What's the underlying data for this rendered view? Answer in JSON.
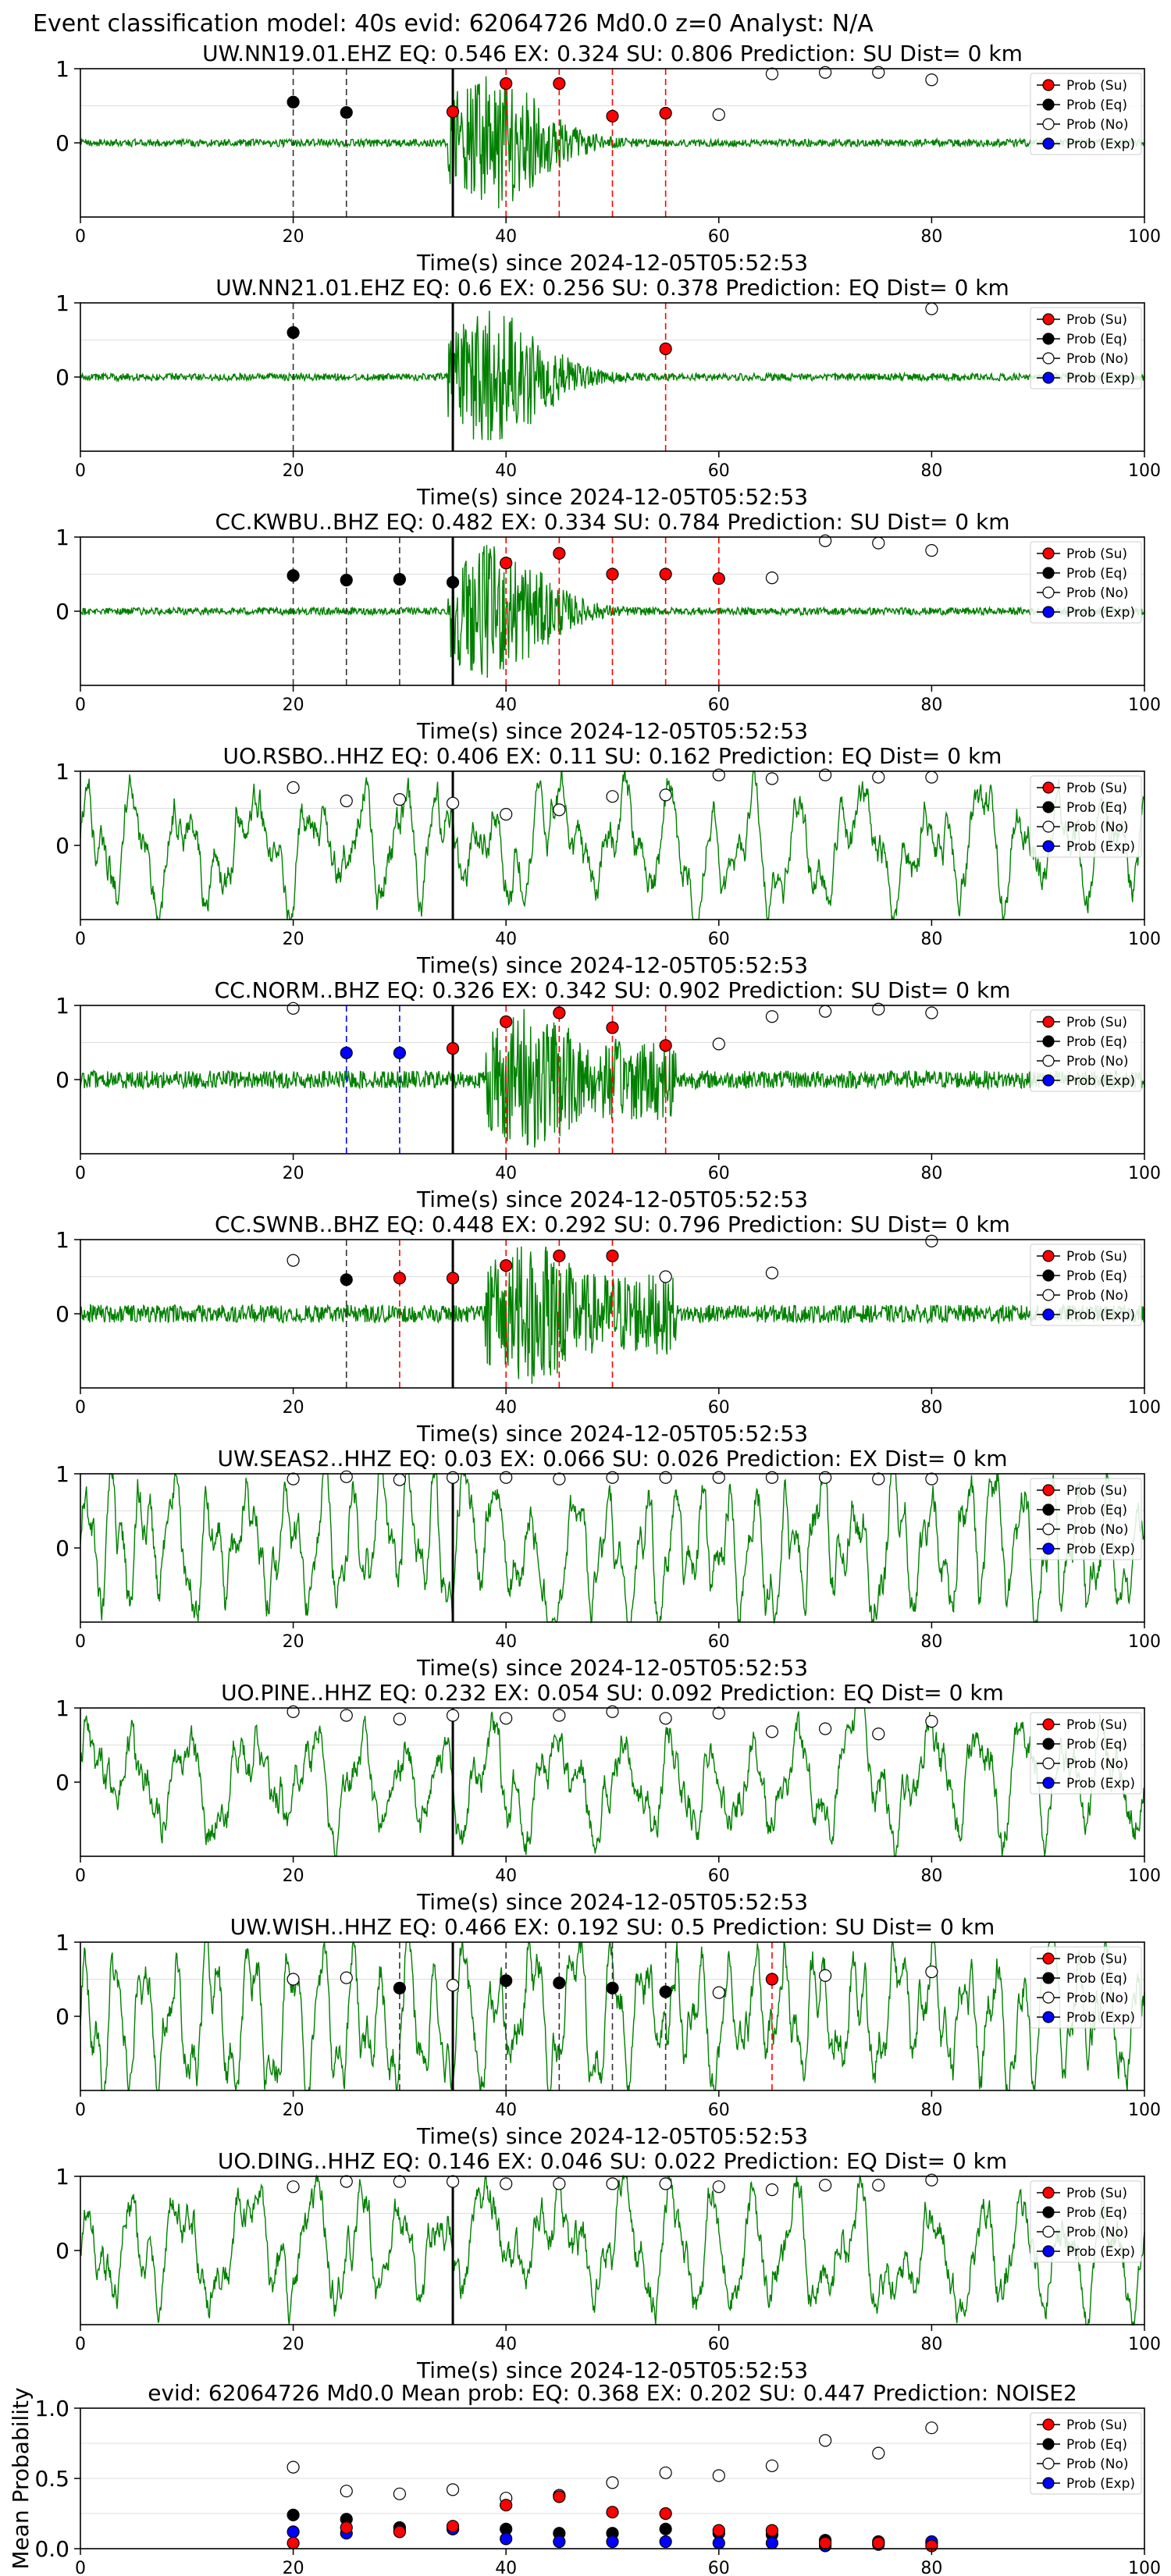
{
  "figure_title": "Event classification model: 40s evid: 62064726 Md0.0 z=0 Analyst: N/A",
  "colors": {
    "waveform": "#008000",
    "su": "#ff0000",
    "eq": "#000000",
    "no": "#ffffff",
    "exp": "#0000ff"
  },
  "legend_labels": [
    "Prob (Su)",
    "Prob (Eq)",
    "Prob (No)",
    "Prob (Exp)"
  ],
  "chart_data": [
    {
      "type": "line",
      "title": "UW.NN19.01.EHZ   EQ: 0.546  EX: 0.324  SU: 0.806   Prediction: SU    Dist= 0 km",
      "xlabel": "Time(s) since 2024-12-05T05:52:53",
      "ylabel": "",
      "xlim": [
        0,
        100
      ],
      "ylim": [
        -1,
        1
      ],
      "xticks": [
        0,
        20,
        40,
        60,
        80,
        100
      ],
      "yticks": [
        0,
        1
      ],
      "event_line_x": 35,
      "wave_style": "event",
      "lines": [
        {
          "x": 20,
          "c": "eq"
        },
        {
          "x": 25,
          "c": "eq"
        },
        {
          "x": 35,
          "c": "su"
        },
        {
          "x": 40,
          "c": "su"
        },
        {
          "x": 45,
          "c": "su"
        },
        {
          "x": 50,
          "c": "su"
        },
        {
          "x": 55,
          "c": "su"
        }
      ],
      "su": [
        [
          35,
          0.42
        ],
        [
          40,
          0.8
        ],
        [
          45,
          0.8
        ],
        [
          50,
          0.36
        ],
        [
          55,
          0.4
        ]
      ],
      "eq": [
        [
          20,
          0.55
        ],
        [
          25,
          0.41
        ]
      ],
      "no": [
        [
          60,
          0.38
        ],
        [
          65,
          0.93
        ],
        [
          70,
          0.95
        ],
        [
          75,
          0.95
        ],
        [
          80,
          0.85
        ]
      ],
      "exp": []
    },
    {
      "type": "line",
      "title": "UW.NN21.01.EHZ   EQ: 0.6  EX: 0.256  SU: 0.378   Prediction: EQ    Dist= 0 km",
      "xlabel": "Time(s) since 2024-12-05T05:52:53",
      "ylabel": "",
      "xlim": [
        0,
        100
      ],
      "ylim": [
        -1,
        1
      ],
      "xticks": [
        0,
        20,
        40,
        60,
        80,
        100
      ],
      "yticks": [
        0,
        1
      ],
      "event_line_x": 35,
      "wave_style": "event2",
      "lines": [
        {
          "x": 20,
          "c": "eq"
        },
        {
          "x": 55,
          "c": "su"
        }
      ],
      "su": [
        [
          55,
          0.38
        ]
      ],
      "eq": [
        [
          20,
          0.6
        ]
      ],
      "no": [
        [
          80,
          0.92
        ]
      ],
      "exp": []
    },
    {
      "type": "line",
      "title": "CC.KWBU..BHZ   EQ: 0.482  EX: 0.334  SU: 0.784   Prediction: SU    Dist= 0 km",
      "xlabel": "Time(s) since 2024-12-05T05:52:53",
      "ylabel": "",
      "xlim": [
        0,
        100
      ],
      "ylim": [
        -1,
        1
      ],
      "xticks": [
        0,
        20,
        40,
        60,
        80,
        100
      ],
      "yticks": [
        0,
        1
      ],
      "event_line_x": 35,
      "wave_style": "event",
      "lines": [
        {
          "x": 20,
          "c": "eq"
        },
        {
          "x": 25,
          "c": "eq"
        },
        {
          "x": 30,
          "c": "eq"
        },
        {
          "x": 40,
          "c": "su"
        },
        {
          "x": 45,
          "c": "su"
        },
        {
          "x": 50,
          "c": "su"
        },
        {
          "x": 55,
          "c": "su"
        },
        {
          "x": 60,
          "c": "su"
        }
      ],
      "su": [
        [
          40,
          0.65
        ],
        [
          45,
          0.78
        ],
        [
          50,
          0.5
        ],
        [
          55,
          0.5
        ],
        [
          60,
          0.44
        ]
      ],
      "eq": [
        [
          20,
          0.48
        ],
        [
          25,
          0.42
        ],
        [
          30,
          0.43
        ],
        [
          35,
          0.39
        ]
      ],
      "no": [
        [
          65,
          0.45
        ],
        [
          70,
          0.95
        ],
        [
          75,
          0.92
        ],
        [
          80,
          0.82
        ]
      ],
      "exp": []
    },
    {
      "type": "line",
      "title": "UO.RSBO..HHZ   EQ: 0.406  EX: 0.11  SU: 0.162   Prediction: EQ    Dist= 0 km",
      "xlabel": "Time(s) since 2024-12-05T05:52:53",
      "ylabel": "",
      "xlim": [
        0,
        100
      ],
      "ylim": [
        -1,
        1
      ],
      "xticks": [
        0,
        20,
        40,
        60,
        80,
        100
      ],
      "yticks": [
        0,
        1
      ],
      "event_line_x": 35,
      "wave_style": "noise",
      "lines": [],
      "su": [],
      "eq": [],
      "no": [
        [
          20,
          0.78
        ],
        [
          25,
          0.6
        ],
        [
          30,
          0.62
        ],
        [
          35,
          0.57
        ],
        [
          40,
          0.42
        ],
        [
          45,
          0.48
        ],
        [
          50,
          0.66
        ],
        [
          55,
          0.68
        ],
        [
          60,
          0.95
        ],
        [
          65,
          0.9
        ],
        [
          70,
          0.95
        ],
        [
          75,
          0.92
        ],
        [
          80,
          0.92
        ]
      ],
      "exp": []
    },
    {
      "type": "line",
      "title": "CC.NORM..BHZ   EQ: 0.326  EX: 0.342  SU: 0.902   Prediction: SU    Dist= 0 km",
      "xlabel": "Time(s) since 2024-12-05T05:52:53",
      "ylabel": "",
      "xlim": [
        0,
        100
      ],
      "ylim": [
        -1,
        1
      ],
      "xticks": [
        0,
        20,
        40,
        60,
        80,
        100
      ],
      "yticks": [
        0,
        1
      ],
      "event_line_x": 35,
      "wave_style": "event3",
      "lines": [
        {
          "x": 25,
          "c": "exp"
        },
        {
          "x": 30,
          "c": "exp"
        },
        {
          "x": 40,
          "c": "su"
        },
        {
          "x": 45,
          "c": "su"
        },
        {
          "x": 50,
          "c": "su"
        },
        {
          "x": 55,
          "c": "su"
        }
      ],
      "su": [
        [
          35,
          0.42
        ],
        [
          40,
          0.78
        ],
        [
          45,
          0.9
        ],
        [
          50,
          0.7
        ],
        [
          55,
          0.46
        ]
      ],
      "eq": [],
      "no": [
        [
          20,
          0.96
        ],
        [
          60,
          0.48
        ],
        [
          65,
          0.85
        ],
        [
          70,
          0.92
        ],
        [
          75,
          0.95
        ],
        [
          80,
          0.9
        ]
      ],
      "exp": [
        [
          25,
          0.36
        ],
        [
          30,
          0.36
        ]
      ]
    },
    {
      "type": "line",
      "title": "CC.SWNB..BHZ   EQ: 0.448  EX: 0.292  SU: 0.796   Prediction: SU    Dist= 0 km",
      "xlabel": "Time(s) since 2024-12-05T05:52:53",
      "ylabel": "",
      "xlim": [
        0,
        100
      ],
      "ylim": [
        -1,
        1
      ],
      "xticks": [
        0,
        20,
        40,
        60,
        80,
        100
      ],
      "yticks": [
        0,
        1
      ],
      "event_line_x": 35,
      "wave_style": "event3",
      "lines": [
        {
          "x": 25,
          "c": "eq"
        },
        {
          "x": 30,
          "c": "su"
        },
        {
          "x": 40,
          "c": "su"
        },
        {
          "x": 45,
          "c": "su"
        },
        {
          "x": 50,
          "c": "su"
        }
      ],
      "su": [
        [
          30,
          0.48
        ],
        [
          35,
          0.48
        ],
        [
          40,
          0.65
        ],
        [
          45,
          0.78
        ],
        [
          50,
          0.78
        ]
      ],
      "eq": [
        [
          25,
          0.46
        ]
      ],
      "no": [
        [
          20,
          0.72
        ],
        [
          55,
          0.5
        ],
        [
          65,
          0.55
        ],
        [
          80,
          0.98
        ]
      ],
      "exp": []
    },
    {
      "type": "line",
      "title": "UW.SEAS2..HHZ   EQ: 0.03  EX: 0.066  SU: 0.026   Prediction: EX    Dist= 0 km",
      "xlabel": "Time(s) since 2024-12-05T05:52:53",
      "ylabel": "",
      "xlim": [
        0,
        100
      ],
      "ylim": [
        -1,
        1
      ],
      "xticks": [
        0,
        20,
        40,
        60,
        80,
        100
      ],
      "yticks": [
        0,
        1
      ],
      "event_line_x": 35,
      "wave_style": "noise2",
      "lines": [],
      "su": [],
      "eq": [],
      "no": [
        [
          20,
          0.93
        ],
        [
          25,
          0.96
        ],
        [
          30,
          0.92
        ],
        [
          35,
          0.95
        ],
        [
          40,
          0.95
        ],
        [
          45,
          0.93
        ],
        [
          50,
          0.95
        ],
        [
          55,
          0.95
        ],
        [
          60,
          0.95
        ],
        [
          65,
          0.95
        ],
        [
          70,
          0.95
        ],
        [
          75,
          0.93
        ],
        [
          80,
          0.93
        ]
      ],
      "exp": []
    },
    {
      "type": "line",
      "title": "UO.PINE..HHZ   EQ: 0.232  EX: 0.054  SU: 0.092   Prediction: EQ    Dist= 0 km",
      "xlabel": "Time(s) since 2024-12-05T05:52:53",
      "ylabel": "",
      "xlim": [
        0,
        100
      ],
      "ylim": [
        -1,
        1
      ],
      "xticks": [
        0,
        20,
        40,
        60,
        80,
        100
      ],
      "yticks": [
        0,
        1
      ],
      "event_line_x": 35,
      "wave_style": "noise",
      "lines": [],
      "su": [],
      "eq": [],
      "no": [
        [
          20,
          0.95
        ],
        [
          25,
          0.9
        ],
        [
          30,
          0.85
        ],
        [
          35,
          0.9
        ],
        [
          40,
          0.86
        ],
        [
          45,
          0.9
        ],
        [
          50,
          0.95
        ],
        [
          55,
          0.86
        ],
        [
          60,
          0.93
        ],
        [
          65,
          0.68
        ],
        [
          70,
          0.72
        ],
        [
          75,
          0.65
        ],
        [
          80,
          0.82
        ]
      ],
      "exp": []
    },
    {
      "type": "line",
      "title": "UW.WISH..HHZ   EQ: 0.466  EX: 0.192  SU: 0.5   Prediction: SU    Dist= 0 km",
      "xlabel": "Time(s) since 2024-12-05T05:52:53",
      "ylabel": "",
      "xlim": [
        0,
        100
      ],
      "ylim": [
        -1,
        1
      ],
      "xticks": [
        0,
        20,
        40,
        60,
        80,
        100
      ],
      "yticks": [
        0,
        1
      ],
      "event_line_x": 35,
      "wave_style": "noise2",
      "lines": [
        {
          "x": 30,
          "c": "eq"
        },
        {
          "x": 40,
          "c": "eq"
        },
        {
          "x": 45,
          "c": "eq"
        },
        {
          "x": 50,
          "c": "eq"
        },
        {
          "x": 55,
          "c": "eq"
        },
        {
          "x": 65,
          "c": "su"
        }
      ],
      "su": [
        [
          65,
          0.5
        ]
      ],
      "eq": [
        [
          30,
          0.38
        ],
        [
          40,
          0.48
        ],
        [
          45,
          0.45
        ],
        [
          50,
          0.38
        ],
        [
          55,
          0.33
        ]
      ],
      "no": [
        [
          20,
          0.5
        ],
        [
          25,
          0.52
        ],
        [
          35,
          0.42
        ],
        [
          60,
          0.32
        ],
        [
          70,
          0.55
        ],
        [
          80,
          0.6
        ]
      ],
      "exp": []
    },
    {
      "type": "line",
      "title": "UO.DING..HHZ   EQ: 0.146  EX: 0.046  SU: 0.022   Prediction: EQ    Dist= 0 km",
      "xlabel": "Time(s) since 2024-12-05T05:52:53",
      "ylabel": "",
      "xlim": [
        0,
        100
      ],
      "ylim": [
        -1,
        1
      ],
      "xticks": [
        0,
        20,
        40,
        60,
        80,
        100
      ],
      "yticks": [
        0,
        1
      ],
      "event_line_x": 35,
      "wave_style": "noise",
      "lines": [],
      "su": [],
      "eq": [],
      "no": [
        [
          20,
          0.86
        ],
        [
          25,
          0.93
        ],
        [
          30,
          0.93
        ],
        [
          35,
          0.93
        ],
        [
          40,
          0.9
        ],
        [
          45,
          0.9
        ],
        [
          50,
          0.9
        ],
        [
          55,
          0.9
        ],
        [
          60,
          0.86
        ],
        [
          65,
          0.82
        ],
        [
          70,
          0.88
        ],
        [
          75,
          0.88
        ],
        [
          80,
          0.95
        ]
      ],
      "exp": []
    },
    {
      "type": "scatter",
      "title": "evid: 62064726  Md0.0   Mean prob:   EQ: 0.368  EX: 0.202  SU: 0.447   Prediction: NOISE2",
      "xlabel": "",
      "ylabel": "Mean Probability",
      "xlim": [
        0,
        100
      ],
      "ylim": [
        0,
        1
      ],
      "xticks": [
        0,
        20,
        40,
        60,
        80,
        100
      ],
      "yticks": [
        0.0,
        0.5,
        1.0
      ],
      "yticklabels": [
        "0.0",
        "0.5",
        "1.0"
      ],
      "event_line_x": null,
      "wave_style": null,
      "lines": [],
      "su": [
        [
          20,
          0.04
        ],
        [
          25,
          0.15
        ],
        [
          30,
          0.12
        ],
        [
          35,
          0.16
        ],
        [
          40,
          0.31
        ],
        [
          45,
          0.37
        ],
        [
          50,
          0.26
        ],
        [
          55,
          0.25
        ],
        [
          60,
          0.13
        ],
        [
          65,
          0.13
        ],
        [
          70,
          0.04
        ],
        [
          75,
          0.04
        ],
        [
          80,
          0.02
        ]
      ],
      "eq": [
        [
          20,
          0.24
        ],
        [
          25,
          0.21
        ],
        [
          30,
          0.15
        ],
        [
          35,
          0.14
        ],
        [
          40,
          0.14
        ],
        [
          45,
          0.11
        ],
        [
          50,
          0.11
        ],
        [
          55,
          0.14
        ],
        [
          60,
          0.11
        ],
        [
          65,
          0.1
        ],
        [
          70,
          0.06
        ],
        [
          75,
          0.05
        ],
        [
          80,
          0.04
        ]
      ],
      "no": [
        [
          20,
          0.58
        ],
        [
          25,
          0.41
        ],
        [
          30,
          0.39
        ],
        [
          35,
          0.42
        ],
        [
          40,
          0.36
        ],
        [
          45,
          0.38
        ],
        [
          50,
          0.47
        ],
        [
          55,
          0.54
        ],
        [
          60,
          0.52
        ],
        [
          65,
          0.59
        ],
        [
          70,
          0.77
        ],
        [
          75,
          0.68
        ],
        [
          80,
          0.86
        ]
      ],
      "exp": [
        [
          20,
          0.12
        ],
        [
          25,
          0.11
        ],
        [
          30,
          0.13
        ],
        [
          35,
          0.14
        ],
        [
          40,
          0.07
        ],
        [
          45,
          0.05
        ],
        [
          50,
          0.05
        ],
        [
          55,
          0.05
        ],
        [
          60,
          0.04
        ],
        [
          65,
          0.04
        ],
        [
          70,
          0.02
        ],
        [
          75,
          0.03
        ],
        [
          80,
          0.05
        ]
      ]
    }
  ]
}
